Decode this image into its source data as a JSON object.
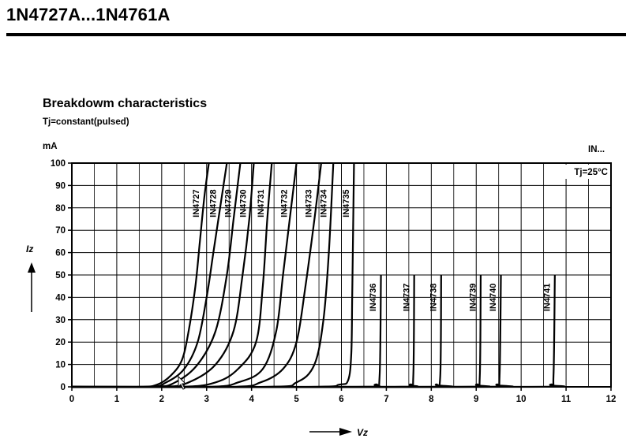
{
  "document": {
    "header_title": "1N4727A...1N4761A"
  },
  "chart_data": {
    "type": "line",
    "title": "Breakdowm characteristics",
    "subtitle": "Tj=constant(pulsed)",
    "corner_label": "IN...",
    "condition_note": "Tj=25°C",
    "xlabel": "Vz",
    "ylabel": "Iz",
    "y_unit": "mA",
    "xlim": [
      0,
      12
    ],
    "ylim": [
      0,
      100
    ],
    "x_ticks": [
      0,
      1,
      2,
      3,
      4,
      5,
      6,
      7,
      8,
      9,
      10,
      11,
      12
    ],
    "y_ticks": [
      0,
      10,
      20,
      30,
      40,
      50,
      60,
      70,
      80,
      90,
      100
    ],
    "grid": true,
    "series": [
      {
        "name": "IN4727",
        "points": [
          [
            0,
            0
          ],
          [
            1.5,
            0
          ],
          [
            1.9,
            1
          ],
          [
            2.2,
            5
          ],
          [
            2.45,
            12
          ],
          [
            2.6,
            25
          ],
          [
            2.75,
            45
          ],
          [
            2.85,
            65
          ],
          [
            2.95,
            85
          ],
          [
            3.05,
            100
          ]
        ]
      },
      {
        "name": "IN4728",
        "points": [
          [
            0,
            0
          ],
          [
            1.7,
            0
          ],
          [
            2.1,
            2
          ],
          [
            2.5,
            8
          ],
          [
            2.8,
            20
          ],
          [
            3.0,
            40
          ],
          [
            3.15,
            60
          ],
          [
            3.3,
            80
          ],
          [
            3.45,
            100
          ]
        ]
      },
      {
        "name": "IN4729",
        "points": [
          [
            0,
            0
          ],
          [
            1.8,
            0
          ],
          [
            2.3,
            2
          ],
          [
            2.8,
            10
          ],
          [
            3.2,
            25
          ],
          [
            3.45,
            50
          ],
          [
            3.6,
            75
          ],
          [
            3.75,
            100
          ]
        ]
      },
      {
        "name": "IN4730",
        "points": [
          [
            0,
            0
          ],
          [
            2.0,
            0
          ],
          [
            2.6,
            2
          ],
          [
            3.2,
            10
          ],
          [
            3.6,
            25
          ],
          [
            3.8,
            50
          ],
          [
            3.95,
            75
          ],
          [
            4.05,
            100
          ]
        ]
      },
      {
        "name": "IN4731",
        "points": [
          [
            0,
            0
          ],
          [
            2.4,
            0
          ],
          [
            3.2,
            2
          ],
          [
            3.7,
            8
          ],
          [
            4.1,
            20
          ],
          [
            4.25,
            45
          ],
          [
            4.35,
            75
          ],
          [
            4.45,
            100
          ]
        ]
      },
      {
        "name": "IN4732",
        "points": [
          [
            0,
            0
          ],
          [
            3.0,
            0
          ],
          [
            3.7,
            2
          ],
          [
            4.25,
            8
          ],
          [
            4.55,
            25
          ],
          [
            4.7,
            50
          ],
          [
            4.85,
            75
          ],
          [
            5.0,
            100
          ]
        ]
      },
      {
        "name": "IN4733",
        "points": [
          [
            0,
            0
          ],
          [
            3.5,
            0
          ],
          [
            4.2,
            2
          ],
          [
            4.7,
            8
          ],
          [
            5.0,
            20
          ],
          [
            5.2,
            45
          ],
          [
            5.4,
            75
          ],
          [
            5.55,
            100
          ]
        ]
      },
      {
        "name": "IN4734",
        "points": [
          [
            0,
            0
          ],
          [
            4.3,
            0
          ],
          [
            5.0,
            2
          ],
          [
            5.4,
            10
          ],
          [
            5.6,
            30
          ],
          [
            5.72,
            60
          ],
          [
            5.82,
            100
          ]
        ]
      },
      {
        "name": "IN4735",
        "points": [
          [
            0,
            0
          ],
          [
            5.2,
            0
          ],
          [
            5.95,
            1
          ],
          [
            6.15,
            3
          ],
          [
            6.22,
            15
          ],
          [
            6.24,
            40
          ],
          [
            6.26,
            70
          ],
          [
            6.28,
            100
          ]
        ]
      },
      {
        "name": "IN4736",
        "points": [
          [
            0,
            0
          ],
          [
            6.2,
            0
          ],
          [
            6.75,
            1
          ],
          [
            6.85,
            5
          ],
          [
            6.88,
            50
          ]
        ]
      },
      {
        "name": "IN4737",
        "points": [
          [
            0,
            0
          ],
          [
            7.0,
            0
          ],
          [
            7.52,
            1
          ],
          [
            7.6,
            5
          ],
          [
            7.62,
            50
          ]
        ]
      },
      {
        "name": "IN4738",
        "points": [
          [
            0,
            0
          ],
          [
            7.8,
            0
          ],
          [
            8.1,
            1
          ],
          [
            8.2,
            5
          ],
          [
            8.22,
            50
          ]
        ]
      },
      {
        "name": "IN4739",
        "points": [
          [
            0,
            0
          ],
          [
            8.5,
            0
          ],
          [
            9.0,
            1
          ],
          [
            9.08,
            5
          ],
          [
            9.1,
            50
          ]
        ]
      },
      {
        "name": "IN4740",
        "points": [
          [
            0,
            0
          ],
          [
            9.0,
            0
          ],
          [
            9.45,
            1
          ],
          [
            9.52,
            5
          ],
          [
            9.55,
            50
          ]
        ]
      },
      {
        "name": "IN4741",
        "points": [
          [
            0,
            0
          ],
          [
            10.0,
            0
          ],
          [
            10.65,
            1
          ],
          [
            10.72,
            5
          ],
          [
            10.75,
            50
          ]
        ]
      }
    ]
  }
}
